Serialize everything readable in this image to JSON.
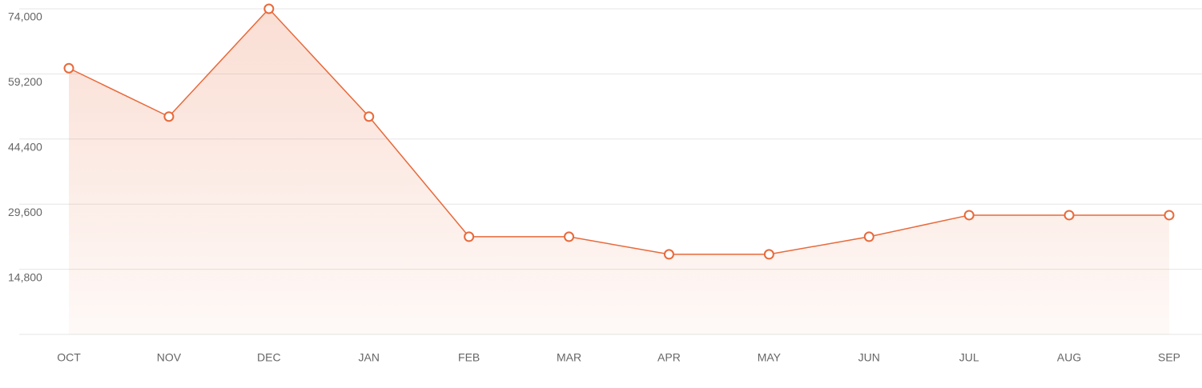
{
  "chart_data": {
    "type": "area",
    "categories": [
      "OCT",
      "NOV",
      "DEC",
      "JAN",
      "FEB",
      "MAR",
      "APR",
      "MAY",
      "JUN",
      "JUL",
      "AUG",
      "SEP"
    ],
    "values": [
      60500,
      49500,
      74000,
      49500,
      22200,
      22200,
      18200,
      18200,
      22200,
      27100,
      27100,
      27100
    ],
    "color": "#e8693a",
    "ylim": [
      0,
      74000
    ],
    "yticks": [
      {
        "value": 14800,
        "label": "14,800"
      },
      {
        "value": 29600,
        "label": "29,600"
      },
      {
        "value": 44400,
        "label": "44,400"
      },
      {
        "value": 59200,
        "label": "59,200"
      },
      {
        "value": 74000,
        "label": "74,000"
      }
    ],
    "grid": true
  }
}
